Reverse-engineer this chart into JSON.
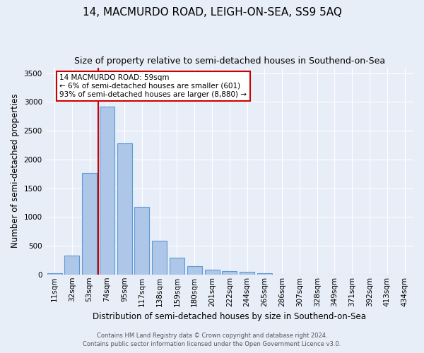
{
  "title": "14, MACMURDO ROAD, LEIGH-ON-SEA, SS9 5AQ",
  "subtitle": "Size of property relative to semi-detached houses in Southend-on-Sea",
  "xlabel": "Distribution of semi-detached houses by size in Southend-on-Sea",
  "ylabel": "Number of semi-detached properties",
  "categories": [
    "11sqm",
    "32sqm",
    "53sqm",
    "74sqm",
    "95sqm",
    "117sqm",
    "138sqm",
    "159sqm",
    "180sqm",
    "201sqm",
    "222sqm",
    "244sqm",
    "265sqm",
    "286sqm",
    "307sqm",
    "328sqm",
    "349sqm",
    "371sqm",
    "392sqm",
    "413sqm",
    "434sqm"
  ],
  "values": [
    20,
    330,
    1760,
    2920,
    2280,
    1180,
    590,
    295,
    140,
    80,
    55,
    50,
    20,
    0,
    0,
    0,
    0,
    0,
    0,
    0,
    0
  ],
  "bar_color": "#aec6e8",
  "bar_edgecolor": "#5b9bd5",
  "highlight_line_color": "#cc0000",
  "annotation_text": "14 MACMURDO ROAD: 59sqm\n← 6% of semi-detached houses are smaller (601)\n93% of semi-detached houses are larger (8,880) →",
  "annotation_box_color": "#ffffff",
  "annotation_box_edgecolor": "#cc0000",
  "ylim": [
    0,
    3600
  ],
  "yticks": [
    0,
    500,
    1000,
    1500,
    2000,
    2500,
    3000,
    3500
  ],
  "bg_color": "#e8eef8",
  "plot_bg_color": "#e8eef8",
  "footer_line1": "Contains HM Land Registry data © Crown copyright and database right 2024.",
  "footer_line2": "Contains public sector information licensed under the Open Government Licence v3.0.",
  "title_fontsize": 11,
  "subtitle_fontsize": 9,
  "xlabel_fontsize": 8.5,
  "ylabel_fontsize": 8.5,
  "tick_fontsize": 7.5,
  "footer_fontsize": 6,
  "annotation_fontsize": 7.5
}
